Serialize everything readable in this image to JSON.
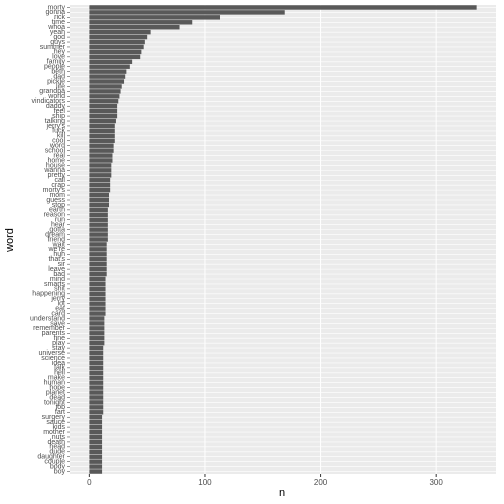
{
  "chart_data": {
    "type": "bar",
    "orientation": "horizontal",
    "x_label": "n",
    "y_label": "word",
    "categories": [
      "morty",
      "gonna",
      "rick",
      "time",
      "whoa",
      "yeah",
      "god",
      "guys",
      "summer",
      "hey",
      "love",
      "family",
      "people",
      "beth",
      "dad",
      "pickle",
      "life",
      "grandpa",
      "world",
      "vindicators",
      "daddy",
      "feel",
      "ship",
      "talking",
      "jerry's",
      "fuck",
      "kill",
      "cool",
      "word",
      "school",
      "real",
      "home",
      "house",
      "wanna",
      "pretty",
      "call",
      "crap",
      "morty's",
      "mom",
      "guess",
      "stop",
      "earth",
      "reason",
      "run",
      "hear",
      "gotta",
      "dream",
      "friend",
      "wait",
      "we're",
      "huh",
      "that's",
      "sir",
      "leave",
      "bad",
      "mind",
      "smarts",
      "shit",
      "happening",
      "jerry",
      "lot",
      "eat",
      "card",
      "understand",
      "save",
      "remember",
      "parents",
      "fine",
      "play",
      "stay",
      "universe",
      "science",
      "idea",
      "talk",
      "hell",
      "make",
      "human",
      "hope",
      "planet",
      "dead",
      "tonight",
      "job",
      "fart",
      "surgery",
      "sauce",
      "kids",
      "mother",
      "nuts",
      "death",
      "head",
      "dude",
      "daughter",
      "couple",
      "body",
      "boy"
    ],
    "values": [
      335,
      169,
      113,
      89,
      78,
      53,
      50,
      48,
      47,
      45,
      44,
      37,
      35,
      32,
      31,
      30,
      28,
      27,
      26,
      25,
      24,
      24,
      24,
      23,
      22,
      22,
      22,
      22,
      21,
      21,
      20,
      20,
      19,
      19,
      19,
      18,
      18,
      18,
      17,
      17,
      17,
      16,
      16,
      16,
      16,
      16,
      16,
      16,
      15,
      15,
      15,
      15,
      15,
      15,
      15,
      14,
      14,
      14,
      14,
      14,
      14,
      14,
      14,
      13,
      13,
      13,
      13,
      13,
      13,
      12,
      12,
      12,
      12,
      12,
      12,
      12,
      12,
      12,
      12,
      12,
      12,
      12,
      12,
      11,
      11,
      11,
      11,
      11,
      11,
      11,
      11,
      11,
      11,
      11,
      11
    ],
    "color": "#595959",
    "xlim": [
      -16.75,
      351.75
    ],
    "xticks": [
      0,
      100,
      200,
      300
    ],
    "grid": true
  }
}
